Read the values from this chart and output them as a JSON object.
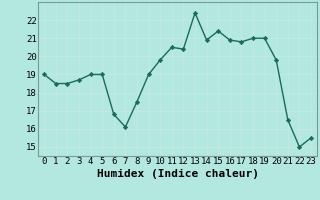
{
  "x": [
    0,
    1,
    2,
    3,
    4,
    5,
    6,
    7,
    8,
    9,
    10,
    11,
    12,
    13,
    14,
    15,
    16,
    17,
    18,
    19,
    20,
    21,
    22,
    23
  ],
  "y": [
    19.0,
    18.5,
    18.5,
    18.7,
    19.0,
    19.0,
    16.8,
    16.1,
    17.5,
    19.0,
    19.8,
    20.5,
    20.4,
    22.4,
    20.9,
    21.4,
    20.9,
    20.8,
    21.0,
    21.0,
    19.8,
    16.5,
    15.0,
    15.5
  ],
  "xlabel": "Humidex (Indice chaleur)",
  "ylim": [
    14.5,
    23.0
  ],
  "xlim": [
    -0.5,
    23.5
  ],
  "yticks": [
    15,
    16,
    17,
    18,
    19,
    20,
    21,
    22
  ],
  "xticks": [
    0,
    1,
    2,
    3,
    4,
    5,
    6,
    7,
    8,
    9,
    10,
    11,
    12,
    13,
    14,
    15,
    16,
    17,
    18,
    19,
    20,
    21,
    22,
    23
  ],
  "line_color": "#1a6b5a",
  "marker_color": "#1a6b5a",
  "bg_color": "#b2e8e0",
  "grid_color": "#c8e8e4",
  "tick_label_fontsize": 6.5,
  "xlabel_fontsize": 8.0
}
